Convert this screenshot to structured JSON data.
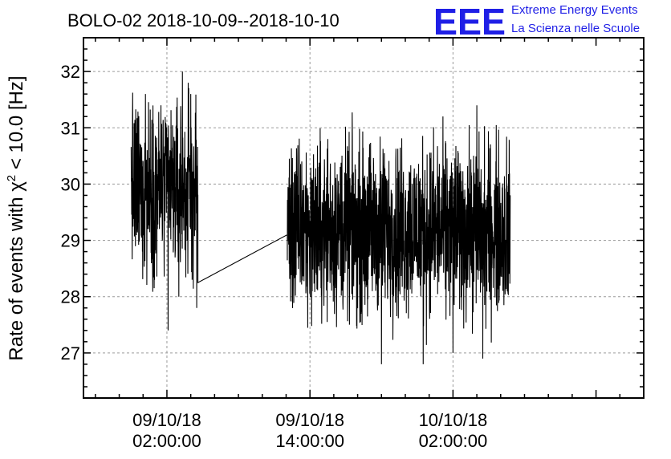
{
  "header": {
    "title": "BOLO-02 2018-10-09--2018-10-10",
    "brand_logo": "EEE",
    "brand_line1": "Extreme Energy Events",
    "brand_line2": "La Scienza nelle Scuole"
  },
  "colors": {
    "brand": "#1f1fe6",
    "line": "#000000",
    "grid": "#9a9a9a"
  },
  "chart_data": {
    "type": "line",
    "ylabel_prefix": "Rate of events with χ",
    "ylabel_sup": "2",
    "ylabel_suffix": " < 10.0 [Hz]",
    "xlabel": "",
    "x_unit": "hours since 2018-10-09 00:00",
    "xlim": [
      -5,
      42
    ],
    "ylim": [
      26.2,
      32.6
    ],
    "yticks": [
      27,
      28,
      29,
      30,
      31,
      32
    ],
    "xticks": [
      {
        "x": 2,
        "date": "09/10/18",
        "time": "02:00:00"
      },
      {
        "x": 14,
        "date": "09/10/18",
        "time": "14:00:00"
      },
      {
        "x": 26,
        "date": "10/10/18",
        "time": "02:00:00"
      }
    ],
    "grid": true,
    "segments": [
      {
        "x_start": -1.0,
        "x_end": 4.6,
        "mean": 29.9,
        "amplitude": 0.75,
        "spikes": [
          [
            0.2,
            31.6
          ],
          [
            1.5,
            31.4
          ],
          [
            3.3,
            32.0
          ],
          [
            4.0,
            31.6
          ],
          [
            2.1,
            27.4
          ],
          [
            3.0,
            28.0
          ],
          [
            4.5,
            27.8
          ]
        ]
      },
      {
        "x_start": 12.1,
        "x_end": 30.8,
        "mean": 29.2,
        "amplitude": 0.75,
        "spikes": [
          [
            15.5,
            30.8
          ],
          [
            28.0,
            31.4
          ],
          [
            20.0,
            26.8
          ],
          [
            23.5,
            26.8
          ],
          [
            26.0,
            27.0
          ],
          [
            28.5,
            26.9
          ]
        ]
      }
    ],
    "gap_line": {
      "x_start": 4.6,
      "y_start": 28.25,
      "x_end": 12.1,
      "y_end": 29.1
    }
  }
}
